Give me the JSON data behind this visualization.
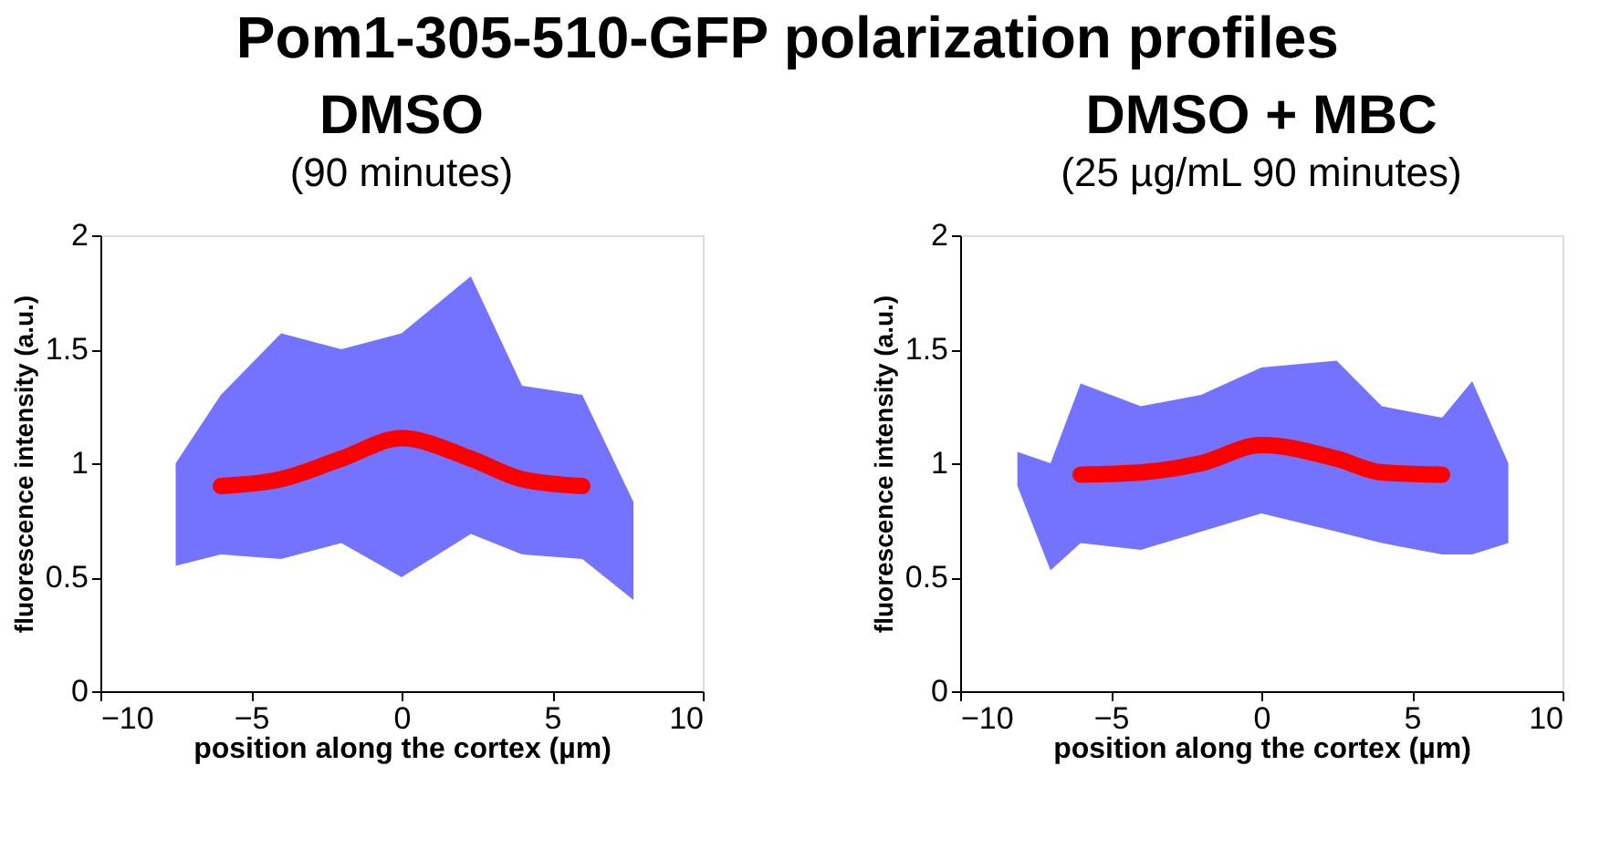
{
  "chart_data": [
    {
      "type": "line",
      "title": "DMSO",
      "subtitle": "(90 minutes)",
      "annotations": [
        "Pom1-305-510-GFP polarization profiles"
      ],
      "xlabel": "position along the cortex (µm)",
      "ylabel": "fluorescence intensity (a.u.)",
      "xlim": [
        -10,
        10
      ],
      "xticks": [
        -10,
        -5,
        0,
        5,
        10
      ],
      "ylim": [
        0,
        2
      ],
      "yticks": [
        0,
        0.5,
        1,
        1.5,
        2
      ],
      "grid": false,
      "x": [
        -7.5,
        -6,
        -4,
        -2,
        0,
        2.3,
        4,
        6,
        7.7
      ],
      "series": [
        {
          "color": "#0000ff",
          "values": [
            null,
            null,
            null,
            null,
            null,
            null,
            null,
            null,
            null
          ],
          "lower": [
            0.55,
            0.6,
            0.58,
            0.65,
            0.5,
            0.69,
            0.6,
            0.58,
            0.4
          ],
          "upper": [
            1.0,
            1.3,
            1.57,
            1.5,
            1.57,
            1.82,
            1.34,
            1.3,
            0.83
          ]
        },
        {
          "color": "#ff0000",
          "values": [
            null,
            0.9,
            0.93,
            1.02,
            1.11,
            1.02,
            0.93,
            0.9,
            null
          ]
        }
      ]
    },
    {
      "type": "line",
      "title": "DMSO + MBC",
      "subtitle": "(25 µg/mL 90 minutes)",
      "xlabel": "position along the cortex (µm)",
      "ylabel": "fluorescence intensity (a.u.)",
      "xlim": [
        -10,
        10
      ],
      "xticks": [
        -10,
        -5,
        0,
        5,
        10
      ],
      "ylim": [
        0,
        2
      ],
      "yticks": [
        0,
        0.5,
        1,
        1.5,
        2
      ],
      "grid": false,
      "x": [
        -8.1,
        -7,
        -6,
        -4,
        -2,
        0,
        2.5,
        4,
        6,
        7,
        8.2
      ],
      "series": [
        {
          "color": "#0000ff",
          "values": [
            null,
            null,
            null,
            null,
            null,
            null,
            null,
            null,
            null,
            null,
            null
          ],
          "lower": [
            0.9,
            0.53,
            0.65,
            0.62,
            0.7,
            0.78,
            0.7,
            0.65,
            0.6,
            0.6,
            0.65
          ],
          "upper": [
            1.05,
            1.0,
            1.35,
            1.25,
            1.3,
            1.42,
            1.45,
            1.25,
            1.2,
            1.36,
            1.0
          ]
        },
        {
          "color": "#ff0000",
          "values": [
            null,
            null,
            0.95,
            0.96,
            1.0,
            1.08,
            1.02,
            0.96,
            0.95,
            null,
            null
          ]
        }
      ]
    }
  ]
}
